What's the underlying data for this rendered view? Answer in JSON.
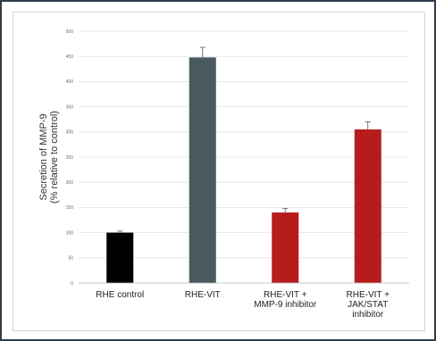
{
  "chart_data": {
    "type": "bar",
    "title": "",
    "ylabel_lines": [
      "Secretion of MMP-9",
      "(% relative to control)"
    ],
    "xlabel": "",
    "ylim": [
      0,
      500
    ],
    "yticks": [
      "0",
      "50",
      "100",
      "150",
      "200",
      "250",
      "300",
      "350",
      "400",
      "450",
      "500"
    ],
    "grid": true,
    "categories": [
      [
        "RHE control"
      ],
      [
        "RHE-VIT"
      ],
      [
        "RHE-VIT +",
        "MMP-9 inhibitor"
      ],
      [
        "RHE-VIT +",
        "JAK/STAT",
        "inhibitor"
      ]
    ],
    "values": [
      100,
      448,
      140,
      305
    ],
    "errors": [
      3,
      20,
      8,
      15
    ],
    "colors": [
      "#000000",
      "#485a60",
      "#b71c1c",
      "#b71c1c"
    ]
  }
}
